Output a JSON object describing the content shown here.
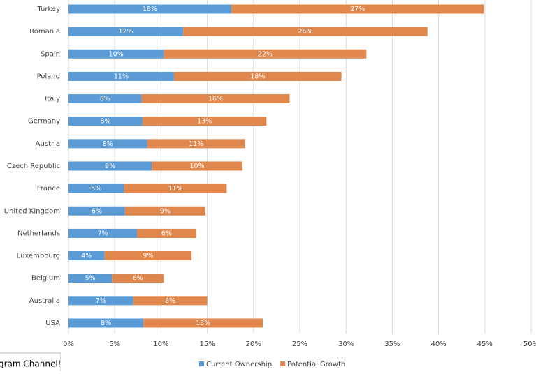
{
  "chart_data": {
    "type": "stacked-bar",
    "orientation": "horizontal",
    "categories": [
      "Turkey",
      "Romania",
      "Spain",
      "Poland",
      "Italy",
      "Germany",
      "Austria",
      "Czech Republic",
      "France",
      "United Kingdom",
      "Netherlands",
      "Luxembourg",
      "Belgium",
      "Australia",
      "USA"
    ],
    "series": [
      {
        "name": "Current Ownership",
        "color": "#5b9bd5",
        "values": [
          17.6,
          12.4,
          10.3,
          11.4,
          7.9,
          8.0,
          8.5,
          9.0,
          6.0,
          6.1,
          7.4,
          3.9,
          4.7,
          7.0,
          8.1
        ],
        "value_labels": [
          "18%",
          "12%",
          "10%",
          "11%",
          "8%",
          "8%",
          "8%",
          "9%",
          "6%",
          "6%",
          "7%",
          "4%",
          "5%",
          "7%",
          "8%"
        ]
      },
      {
        "name": "Potential Growth",
        "color": "#e0874e",
        "values": [
          27.3,
          26.4,
          21.9,
          18.1,
          16.0,
          13.4,
          10.6,
          9.8,
          11.1,
          8.7,
          6.4,
          9.4,
          5.6,
          8.0,
          12.9
        ],
        "value_labels": [
          "27%",
          "26%",
          "22%",
          "18%",
          "16%",
          "13%",
          "11%",
          "10%",
          "11%",
          "9%",
          "6%",
          "9%",
          "6%",
          "8%",
          "13%"
        ]
      }
    ],
    "xlim": [
      0,
      50
    ],
    "xticks": [
      {
        "value": 0,
        "label": "0%"
      },
      {
        "value": 5,
        "label": "5%"
      },
      {
        "value": 10,
        "label": "10%"
      },
      {
        "value": 15,
        "label": "15%"
      },
      {
        "value": 20,
        "label": "20%"
      },
      {
        "value": 25,
        "label": "25%"
      },
      {
        "value": 30,
        "label": "30%"
      },
      {
        "value": 35,
        "label": "35%"
      },
      {
        "value": 40,
        "label": "40%"
      },
      {
        "value": 45,
        "label": "45%"
      },
      {
        "value": 50,
        "label": "50%"
      }
    ],
    "grid": true,
    "legend": "bottom",
    "annotations": [
      "gram Channel!"
    ]
  }
}
